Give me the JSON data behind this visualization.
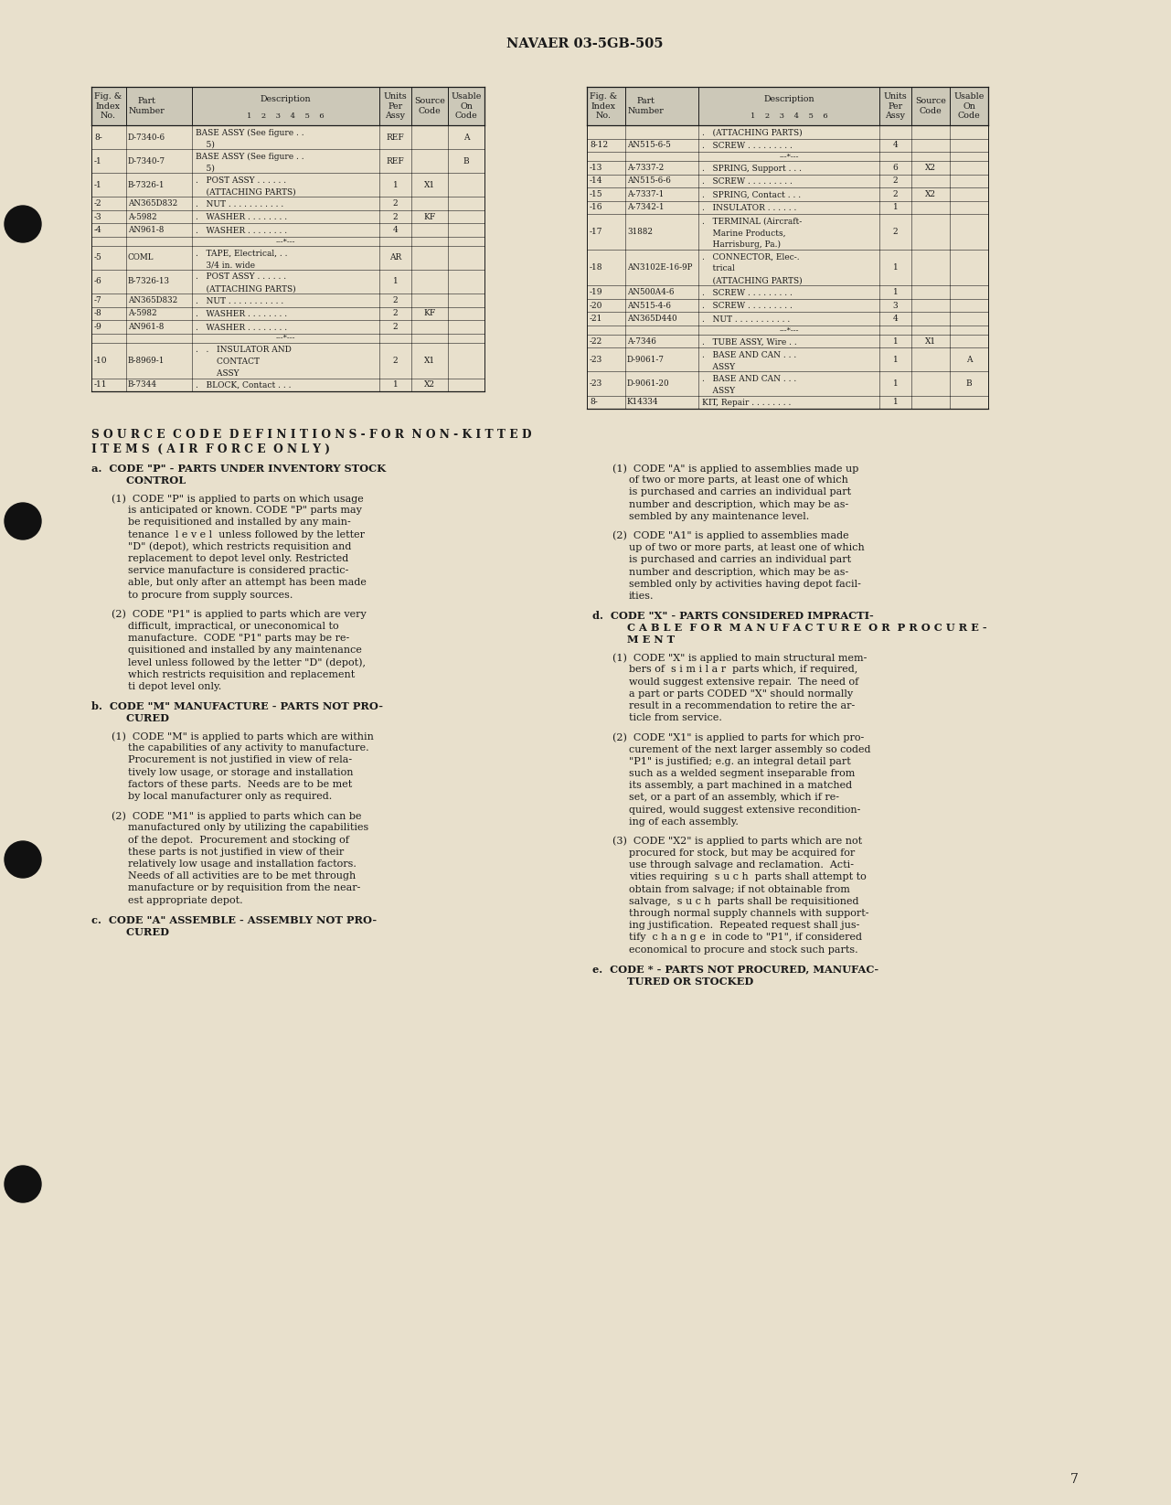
{
  "bg_color": "#e8e0cc",
  "text_color": "#1a1a1a",
  "header_text": "NAVAER 03-5GB-505",
  "page_number": "7",
  "left_rows": [
    [
      "8-",
      "D-7340-6",
      "BASE ASSY (See figure . .\n    5)",
      "REF",
      "",
      "A"
    ],
    [
      "-1",
      "D-7340-7",
      "BASE ASSY (See figure . .\n    5)",
      "REF",
      "",
      "B"
    ],
    [
      "-1",
      "B-7326-1",
      ".   POST ASSY . . . . . .\n    (ATTACHING PARTS)",
      "1",
      "X1",
      ""
    ],
    [
      "-2",
      "AN365D832",
      ".   NUT . . . . . . . . . . .",
      "2",
      "",
      ""
    ],
    [
      "-3",
      "A-5982",
      ".   WASHER . . . . . . . .",
      "2",
      "KF",
      ""
    ],
    [
      "-4",
      "AN961-8",
      ".   WASHER . . . . . . . .",
      "4",
      "",
      ""
    ],
    [
      "",
      "",
      "---*---",
      "",
      "",
      ""
    ],
    [
      "-5",
      "COML",
      ".   TAPE, Electrical, . .\n    3/4 in. wide",
      "AR",
      "",
      ""
    ],
    [
      "-6",
      "B-7326-13",
      ".   POST ASSY . . . . . .\n    (ATTACHING PARTS)",
      "1",
      "",
      ""
    ],
    [
      "-7",
      "AN365D832",
      ".   NUT . . . . . . . . . . .",
      "2",
      "",
      ""
    ],
    [
      "-8",
      "A-5982",
      ".   WASHER . . . . . . . .",
      "2",
      "KF",
      ""
    ],
    [
      "-9",
      "AN961-8",
      ".   WASHER . . . . . . . .",
      "2",
      "",
      ""
    ],
    [
      "",
      "",
      "---*---",
      "",
      "",
      ""
    ],
    [
      "-10",
      "B-8969-1",
      ".   .   INSULATOR AND\n        CONTACT\n        ASSY",
      "2",
      "X1",
      ""
    ],
    [
      "-11",
      "B-7344",
      ".   BLOCK, Contact . . .",
      "1",
      "X2",
      ""
    ]
  ],
  "right_rows": [
    [
      "",
      "",
      ".   (ATTACHING PARTS)",
      "",
      "",
      ""
    ],
    [
      "8-12",
      "AN515-6-5",
      ".   SCREW . . . . . . . . .",
      "4",
      "",
      ""
    ],
    [
      "",
      "",
      "---*---",
      "",
      "",
      ""
    ],
    [
      "-13",
      "A-7337-2",
      ".   SPRING, Support . . .",
      "6",
      "X2",
      ""
    ],
    [
      "-14",
      "AN515-6-6",
      ".   SCREW . . . . . . . . .",
      "2",
      "",
      ""
    ],
    [
      "-15",
      "A-7337-1",
      ".   SPRING, Contact . . .",
      "2",
      "X2",
      ""
    ],
    [
      "-16",
      "A-7342-1",
      ".   INSULATOR . . . . . .",
      "1",
      "",
      ""
    ],
    [
      "-17",
      "31882",
      ".   TERMINAL (Aircraft-\n    Marine Products,\n    Harrisburg, Pa.)",
      "2",
      "",
      ""
    ],
    [
      "-18",
      "AN3102E-16-9P",
      ".   CONNECTOR, Elec-.\n    trical\n    (ATTACHING PARTS)",
      "1",
      "",
      ""
    ],
    [
      "-19",
      "AN500A4-6",
      ".   SCREW . . . . . . . . .",
      "1",
      "",
      ""
    ],
    [
      "-20",
      "AN515-4-6",
      ".   SCREW . . . . . . . . .",
      "3",
      "",
      ""
    ],
    [
      "-21",
      "AN365D440",
      ".   NUT . . . . . . . . . . .",
      "4",
      "",
      ""
    ],
    [
      "",
      "",
      "---*---",
      "",
      "",
      ""
    ],
    [
      "-22",
      "A-7346",
      ".   TUBE ASSY, Wire . .",
      "1",
      "X1",
      ""
    ],
    [
      "-23",
      "D-9061-7",
      ".   BASE AND CAN . . .\n    ASSY",
      "1",
      "",
      "A"
    ],
    [
      "-23",
      "D-9061-20",
      ".   BASE AND CAN . . .\n    ASSY",
      "1",
      "",
      "B"
    ],
    [
      "8-",
      "K14334",
      "KIT, Repair . . . . . . . .",
      "1",
      "",
      ""
    ]
  ],
  "sc_title1": "S O U R C E  C O D E  D E F I N I T I O N S - F O R  N O N - K I T T E D",
  "sc_title2": "I T E M S  ( A I R  F O R C E  O N L Y )",
  "left_text": [
    {
      "type": "heading",
      "text": "a.  CODE \"P\" - PARTS UNDER INVENTORY STOCK\n    CONTROL"
    },
    {
      "type": "para_intro",
      "text": "(1)  CODE \"P\" is applied to parts on which usage"
    },
    {
      "type": "para_body",
      "text": "is anticipated or known. CODE \"P\" parts may\nbe requisitioned and installed by any main-\ntenance  l e v e l  unless followed by the letter\n\"D\" (depot), which restricts requisition and\nreplacement to depot level only. Restricted\nservice manufacture is considered practic-\nable, but only after an attempt has been made\nto procure from supply sources."
    },
    {
      "type": "spacer"
    },
    {
      "type": "para_intro",
      "text": "(2)  CODE \"P1\" is applied to parts which are very"
    },
    {
      "type": "para_body",
      "text": "difficult, impractical, or uneconomical to\nmanufacture.  CODE \"P1\" parts may be re-\nquisitioned and installed by any maintenance\nlevel unless followed by the letter \"D\" (depot),\nwhich restricts requisition and replacement\nti depot level only."
    },
    {
      "type": "spacer"
    },
    {
      "type": "heading",
      "text": "b.  CODE \"M\" MANUFACTURE - PARTS NOT PRO-\n    CURED"
    },
    {
      "type": "para_intro",
      "text": "(1)  CODE \"M\" is applied to parts which are within"
    },
    {
      "type": "para_body",
      "text": "the capabilities of any activity to manufacture.\nProcurement is not justified in view of rela-\ntively low usage, or storage and installation\nfactors of these parts.  Needs are to be met\nby local manufacturer only as required."
    },
    {
      "type": "spacer"
    },
    {
      "type": "para_intro",
      "text": "(2)  CODE \"M1\" is applied to parts which can be"
    },
    {
      "type": "para_body",
      "text": "manufactured only by utilizing the capabilities\nof the depot.  Procurement and stocking of\nthese parts is not justified in view of their\nrelatively low usage and installation factors.\nNeeds of all activities are to be met through\nmanufacture or by requisition from the near-\nest appropriate depot."
    },
    {
      "type": "spacer"
    },
    {
      "type": "heading",
      "text": "c.  CODE \"A\" ASSEMBLE - ASSEMBLY NOT PRO-\n    CURED"
    }
  ],
  "right_text": [
    {
      "type": "para_intro",
      "text": "(1)  CODE \"A\" is applied to assemblies made up"
    },
    {
      "type": "para_body",
      "text": "of two or more parts, at least one of which\nis purchased and carries an individual part\nnumber and description, which may be as-\nsembled by any maintenance level."
    },
    {
      "type": "spacer"
    },
    {
      "type": "para_intro",
      "text": "(2)  CODE \"A1\" is applied to assemblies made"
    },
    {
      "type": "para_body",
      "text": "up of two or more parts, at least one of which\nis purchased and carries an individual part\nnumber and description, which may be as-\nsembled only by activities having depot facil-\nities."
    },
    {
      "type": "spacer"
    },
    {
      "type": "heading",
      "text": "d.  CODE \"X\" - PARTS CONSIDERED IMPRACTI-\n    C A B L E  F O R  M A N U F A C T U R E  O R  P R O C U R E -\n    M E N T"
    },
    {
      "type": "para_intro",
      "text": "(1)  CODE \"X\" is applied to main structural mem-"
    },
    {
      "type": "para_body",
      "text": "bers of  s i m i l a r  parts which, if required,\nwould suggest extensive repair.  The need of\na part or parts CODED \"X\" should normally\nresult in a recommendation to retire the ar-\nticle from service."
    },
    {
      "type": "spacer"
    },
    {
      "type": "para_intro",
      "text": "(2)  CODE \"X1\" is applied to parts for which pro-"
    },
    {
      "type": "para_body",
      "text": "curement of the next larger assembly so coded\n\"P1\" is justified; e.g. an integral detail part\nsuch as a welded segment inseparable from\nits assembly, a part machined in a matched\nset, or a part of an assembly, which if re-\nquired, would suggest extensive recondition-\ning of each assembly."
    },
    {
      "type": "spacer"
    },
    {
      "type": "para_intro",
      "text": "(3)  CODE \"X2\" is applied to parts which are not"
    },
    {
      "type": "para_body",
      "text": "procured for stock, but may be acquired for\nuse through salvage and reclamation.  Acti-\nvities requiring  s u c h  parts shall attempt to\nobtain from salvage; if not obtainable from\nsalvage,  s u c h  parts shall be requisitioned\nthrough normal supply channels with support-\ning justification.  Repeated request shall jus-\ntify  c h a n g e  in code to \"P1\", if considered\neconomical to procure and stock such parts."
    },
    {
      "type": "spacer"
    },
    {
      "type": "heading",
      "text": "e.  CODE * - PARTS NOT PROCURED, MANUFAC-\n    TURED OR STOCKED"
    }
  ]
}
